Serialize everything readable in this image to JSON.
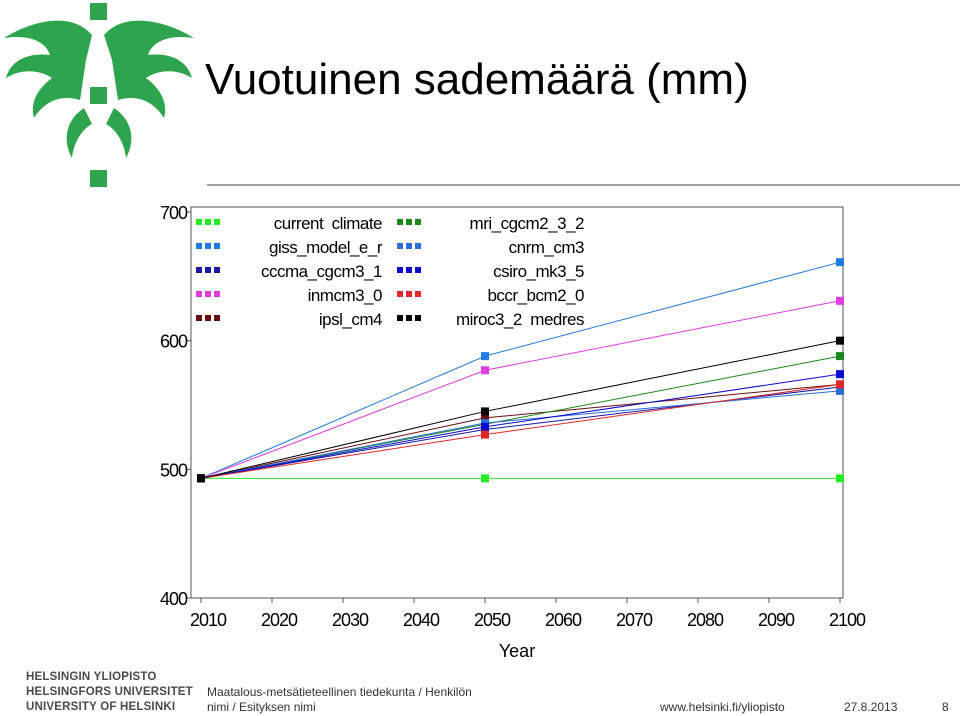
{
  "slide": {
    "title": "Vuotuinen sademäärä (mm)",
    "logo_color": "#2ea44f"
  },
  "footer": {
    "university_lines": [
      "HELSINGIN YLIOPISTO",
      "HELSINGFORS UNIVERSITET",
      "UNIVERSITY OF HELSINKI"
    ],
    "faculty_line1": "Maatalous-metsätieteellinen tiedekunta / Henkilön",
    "faculty_line2": "nimi / Esityksen nimi",
    "url": "www.helsinki.fi/yliopisto",
    "date": "27.8.2013",
    "page": "8"
  },
  "chart_data": {
    "type": "line",
    "xlabel": "Year",
    "ylabel": "",
    "xlim": [
      2010,
      2100
    ],
    "ylim": [
      400,
      700
    ],
    "xticks": [
      2010,
      2020,
      2030,
      2040,
      2050,
      2060,
      2070,
      2080,
      2090,
      2100
    ],
    "yticks": [
      400,
      500,
      600,
      700
    ],
    "grid": false,
    "legend_position": "top-left",
    "x": [
      2010,
      2050,
      2100
    ],
    "series": [
      {
        "name": "current  climate",
        "color": "#22ee22",
        "values": [
          493,
          493,
          493
        ]
      },
      {
        "name": "giss_model_e_r",
        "color": "#1f7ce0",
        "values": [
          493,
          588,
          661
        ]
      },
      {
        "name": "cccma_cgcm3_1",
        "color": "#1a1aa6",
        "values": [
          493,
          531,
          564
        ]
      },
      {
        "name": "inmcm3_0",
        "color": "#e23ae2",
        "values": [
          493,
          577,
          631
        ]
      },
      {
        "name": "ipsl_cm4",
        "color": "#6b0f0f",
        "values": [
          493,
          540,
          566
        ]
      },
      {
        "name": "mri_cgcm2_3_2",
        "color": "#1a8a1a",
        "values": [
          493,
          535,
          588
        ]
      },
      {
        "name": "cnrm_cm3",
        "color": "#2a6ed8",
        "values": [
          493,
          536,
          561
        ]
      },
      {
        "name": "csiro_mk3_5",
        "color": "#0b0bd0",
        "values": [
          493,
          533,
          574
        ]
      },
      {
        "name": "bccr_bcm2_0",
        "color": "#e02828",
        "values": [
          493,
          527,
          566
        ]
      },
      {
        "name": "miroc3_2  medres",
        "color": "#000000",
        "values": [
          493,
          545,
          600
        ]
      }
    ]
  }
}
